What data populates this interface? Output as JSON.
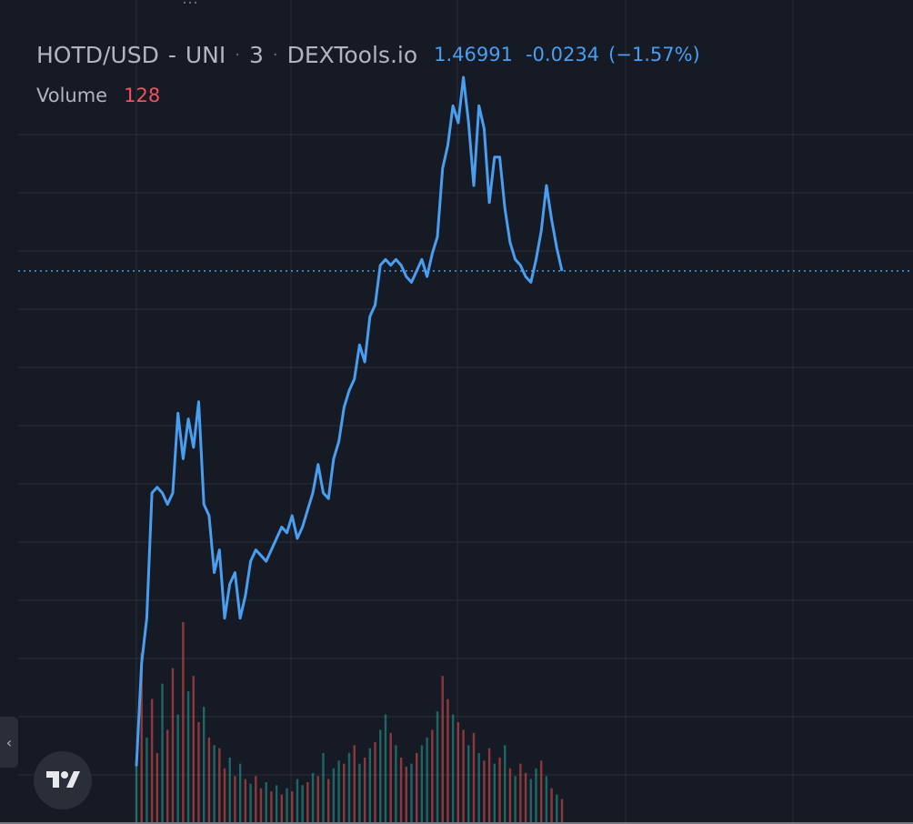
{
  "legend": {
    "pair": "HOTD/USD",
    "sep1": "-",
    "exchange": "UNI",
    "sep": "·",
    "interval": "3",
    "source": "DEXTools.io",
    "price": "1.46991",
    "change": "-0.0234",
    "change_pct": "(−1.57%)"
  },
  "volume": {
    "label": "Volume",
    "value": "128"
  },
  "colors": {
    "background": "#161a25",
    "grid": "#2a2e39",
    "line": "#4a9ef0",
    "vol_up": "#26a69a",
    "vol_down": "#ef5350",
    "text": "#b2b5be"
  },
  "icons": {
    "collapse": "chevron-left-icon",
    "logo": "tradingview-logo-icon"
  },
  "chart_data": {
    "type": "line",
    "title": "HOTD/USD - UNI · 3 · DEXTools.io",
    "price_range_note": "y values in relative price units (axis not printed)",
    "last_price": 1.46991,
    "series": [
      {
        "values": [
          0.6,
          0.78,
          0.86,
          1.08,
          1.09,
          1.08,
          1.06,
          1.08,
          1.22,
          1.14,
          1.21,
          1.16,
          1.24,
          1.06,
          1.04,
          0.94,
          0.98,
          0.86,
          0.92,
          0.94,
          0.86,
          0.9,
          0.96,
          0.98,
          0.97,
          0.96,
          0.98,
          1.0,
          1.02,
          1.01,
          1.04,
          1.0,
          1.02,
          1.05,
          1.08,
          1.13,
          1.08,
          1.07,
          1.14,
          1.17,
          1.23,
          1.26,
          1.28,
          1.34,
          1.31,
          1.39,
          1.41,
          1.48,
          1.49,
          1.48,
          1.49,
          1.48,
          1.46,
          1.45,
          1.47,
          1.49,
          1.46,
          1.5,
          1.53,
          1.65,
          1.69,
          1.76,
          1.73,
          1.81,
          1.73,
          1.62,
          1.76,
          1.72,
          1.59,
          1.67,
          1.67,
          1.58,
          1.52,
          1.49,
          1.48,
          1.46,
          1.45,
          1.49,
          1.54,
          1.62,
          1.56,
          1.51,
          1.47
        ]
      }
    ],
    "volume_values": [
      40,
      110,
      55,
      80,
      45,
      90,
      60,
      100,
      70,
      130,
      85,
      95,
      65,
      75,
      55,
      50,
      48,
      35,
      42,
      30,
      38,
      28,
      25,
      30,
      22,
      26,
      20,
      24,
      18,
      22,
      20,
      28,
      24,
      26,
      32,
      30,
      45,
      28,
      35,
      40,
      38,
      45,
      50,
      38,
      42,
      48,
      52,
      60,
      70,
      58,
      50,
      42,
      36,
      38,
      45,
      50,
      55,
      60,
      72,
      95,
      80,
      70,
      65,
      60,
      50,
      58,
      45,
      40,
      48,
      38,
      42,
      50,
      35,
      30,
      38,
      32,
      28,
      35,
      40,
      30,
      22,
      18,
      15
    ],
    "volume_directions": [
      "u",
      "d",
      "u",
      "d",
      "d",
      "u",
      "d",
      "d",
      "u",
      "d",
      "u",
      "d",
      "d",
      "u",
      "d",
      "u",
      "d",
      "d",
      "u",
      "d",
      "u",
      "d",
      "u",
      "d",
      "d",
      "u",
      "d",
      "u",
      "d",
      "u",
      "d",
      "u",
      "u",
      "d",
      "u",
      "d",
      "u",
      "d",
      "u",
      "u",
      "d",
      "u",
      "d",
      "u",
      "d",
      "u",
      "d",
      "u",
      "u",
      "d",
      "u",
      "d",
      "d",
      "u",
      "d",
      "u",
      "u",
      "d",
      "u",
      "d",
      "d",
      "u",
      "d",
      "d",
      "u",
      "d",
      "u",
      "d",
      "d",
      "u",
      "d",
      "u",
      "d",
      "u",
      "d",
      "d",
      "u",
      "u",
      "d",
      "u",
      "d",
      "u",
      "d"
    ],
    "grid": true
  }
}
